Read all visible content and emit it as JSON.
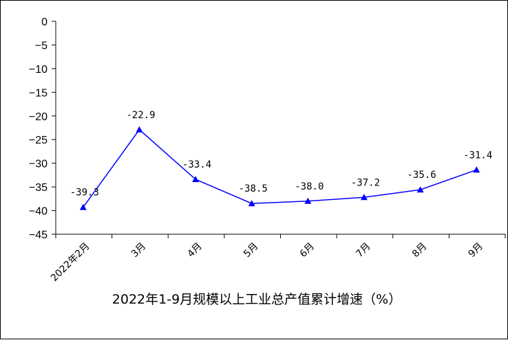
{
  "chart_data": {
    "type": "line",
    "title": "2022年1-9月规模以上工业总产值累计增速（%）",
    "categories": [
      "2022年2月",
      "3月",
      "4月",
      "5月",
      "6月",
      "7月",
      "8月",
      "9月"
    ],
    "series": [
      {
        "values": [
          -39.3,
          -22.9,
          -33.4,
          -38.5,
          -38.0,
          -37.2,
          -35.6,
          -31.4
        ]
      }
    ],
    "data_labels": [
      "-39.3",
      "-22.9",
      "-33.4",
      "-38.5",
      "-38.0",
      "-37.2",
      "-35.6",
      "-31.4"
    ],
    "yticks": [
      "0",
      "-5",
      "-10",
      "-15",
      "-20",
      "-25",
      "-30",
      "-35",
      "-40",
      "-45"
    ],
    "ylim": [
      -45,
      0
    ],
    "grid": false,
    "marker": "triangle",
    "line_color": "#0000ff"
  }
}
